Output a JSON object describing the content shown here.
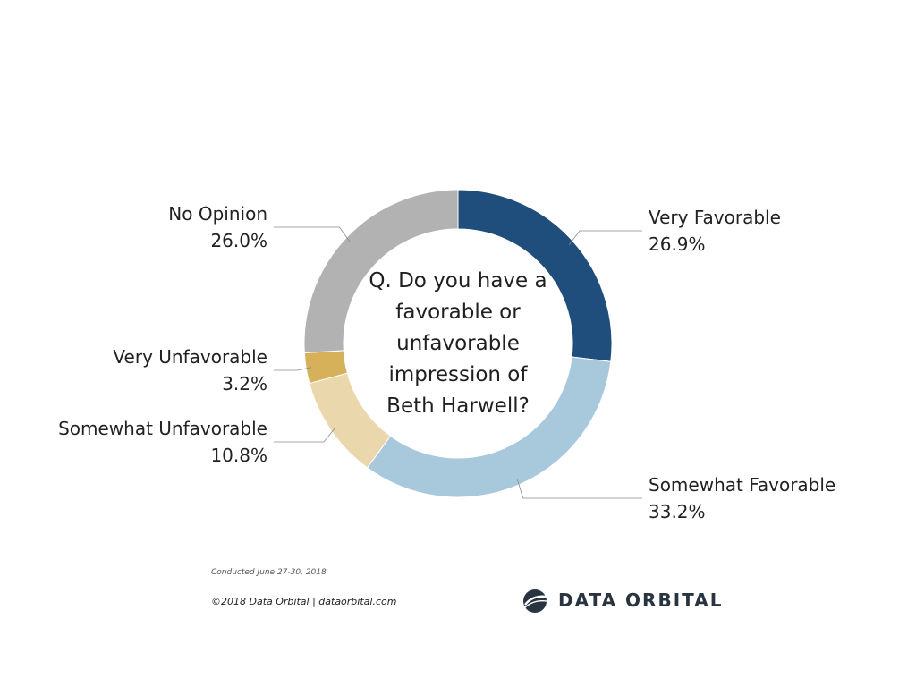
{
  "chart_data": {
    "type": "pie",
    "title": "Q. Do you have a favorable or unfavorable impression of Beth Harwell?",
    "donut": true,
    "start_angle": "12 o'clock, clockwise",
    "slices": [
      {
        "name": "Very Favorable",
        "value": 26.9,
        "label": "26.9%",
        "color": "#1f4e7d"
      },
      {
        "name": "Somewhat Favorable",
        "value": 33.2,
        "label": "33.2%",
        "color": "#a8c9dc"
      },
      {
        "name": "Somewhat Unfavorable",
        "value": 10.8,
        "label": "10.8%",
        "color": "#ead7ab"
      },
      {
        "name": "Very Unfavorable",
        "value": 3.2,
        "label": "3.2%",
        "color": "#d6b15a"
      },
      {
        "name": "No Opinion",
        "value": 26.0,
        "label": "26.0%",
        "color": "#b3b2b2"
      }
    ]
  },
  "footer": {
    "conducted": "Conducted June 27-30, 2018",
    "copyright": "©2018 Data Orbital | dataorbital.com",
    "brand": "DATA ORBITAL"
  }
}
